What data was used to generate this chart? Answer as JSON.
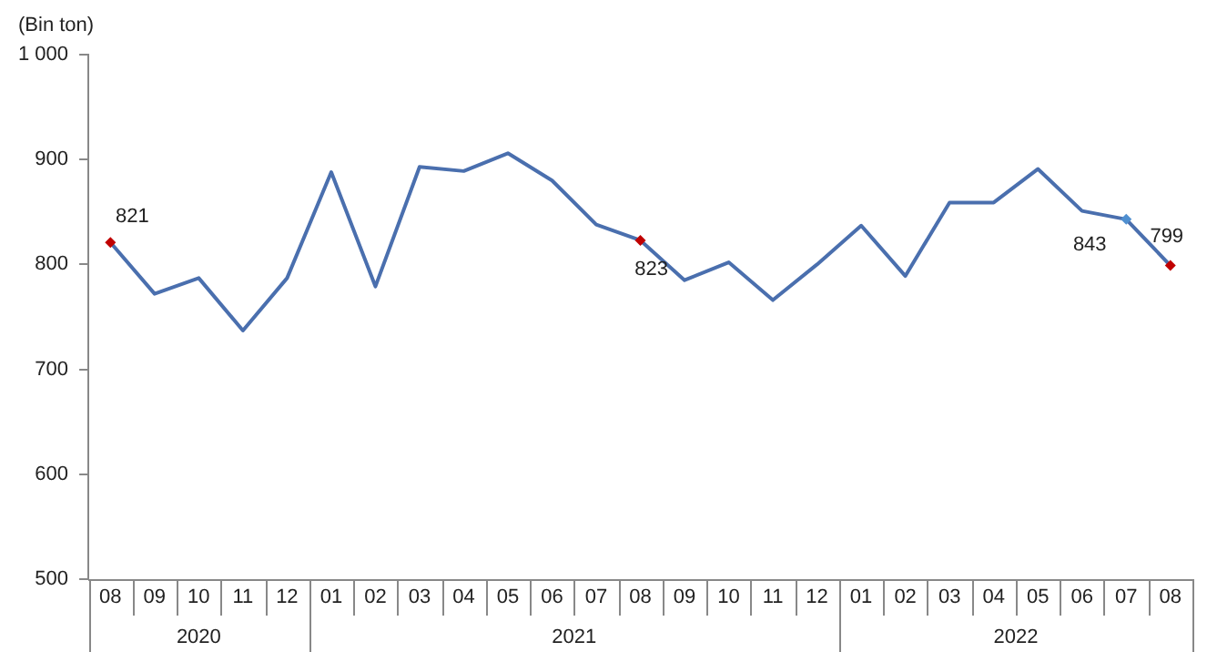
{
  "chart_data": {
    "type": "line",
    "ylabel": "(Bin ton)",
    "categories": [
      "08",
      "09",
      "10",
      "11",
      "12",
      "01",
      "02",
      "03",
      "04",
      "05",
      "06",
      "07",
      "08",
      "09",
      "10",
      "11",
      "12",
      "01",
      "02",
      "03",
      "04",
      "05",
      "06",
      "07",
      "08"
    ],
    "annotations": [
      "2020",
      "2021",
      "2022"
    ],
    "series": [
      {
        "color": "#4a6fae",
        "values": [
          821,
          772,
          787,
          737,
          787,
          888,
          779,
          893,
          889,
          906,
          880,
          838,
          823,
          785,
          802,
          766,
          800,
          837,
          789,
          859,
          859,
          891,
          851,
          843,
          799
        ],
        "colors": [
          "#c00000",
          "#4a6fae",
          "#4a6fae",
          "#4a6fae",
          "#4a6fae",
          "#4a6fae",
          "#4a6fae",
          "#4a6fae",
          "#4a6fae",
          "#4a6fae",
          "#4a6fae",
          "#4a6fae",
          "#c00000",
          "#4a6fae",
          "#4a6fae",
          "#4a6fae",
          "#4a6fae",
          "#4a6fae",
          "#4a6fae",
          "#4a6fae",
          "#4a6fae",
          "#4a6fae",
          "#4a6fae",
          "#4f8fd0",
          "#c00000"
        ],
        "value_labels": [
          "821",
          null,
          null,
          null,
          null,
          null,
          null,
          null,
          null,
          null,
          null,
          null,
          "823",
          null,
          null,
          null,
          null,
          null,
          null,
          null,
          null,
          null,
          null,
          "843",
          "799"
        ]
      }
    ],
    "ylim": [
      500,
      1000
    ],
    "yticks": [
      500,
      600,
      700,
      800,
      900,
      {
        "value": 1000,
        "label": "1 000"
      }
    ],
    "grid": false,
    "legend": false,
    "line_style": "solid"
  }
}
